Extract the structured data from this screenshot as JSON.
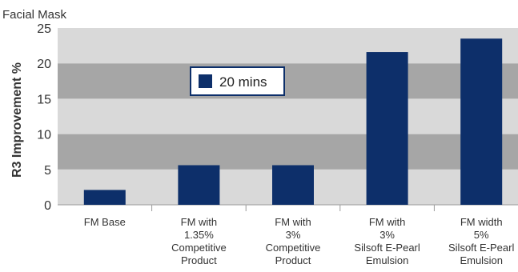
{
  "chart_data": {
    "type": "bar",
    "title": "Facial Mask",
    "ylabel": "R3 Improvement %",
    "xlabel": "",
    "ylim": [
      0,
      25
    ],
    "yticks": [
      0,
      5,
      10,
      15,
      20,
      25
    ],
    "categories": [
      [
        "FM Base"
      ],
      [
        "FM with",
        "1.35%",
        "Competitive",
        "Product"
      ],
      [
        "FM with",
        "3%",
        "Competitive",
        "Product"
      ],
      [
        "FM with",
        "3%",
        "Silsoft E-Pearl",
        "Emulsion"
      ],
      [
        "FM width",
        "5%",
        "Silsoft E-Pearl",
        "Emulsion"
      ]
    ],
    "series": [
      {
        "name": "20 mins",
        "values": [
          2.1,
          5.6,
          5.6,
          21.6,
          23.5
        ]
      }
    ],
    "legend_position": "inside-top-left",
    "grid": "alternating-bands",
    "colors": {
      "bar": "#0d2f6a",
      "band_light": "#d9d9d9",
      "band_dark": "#a6a6a6"
    }
  }
}
